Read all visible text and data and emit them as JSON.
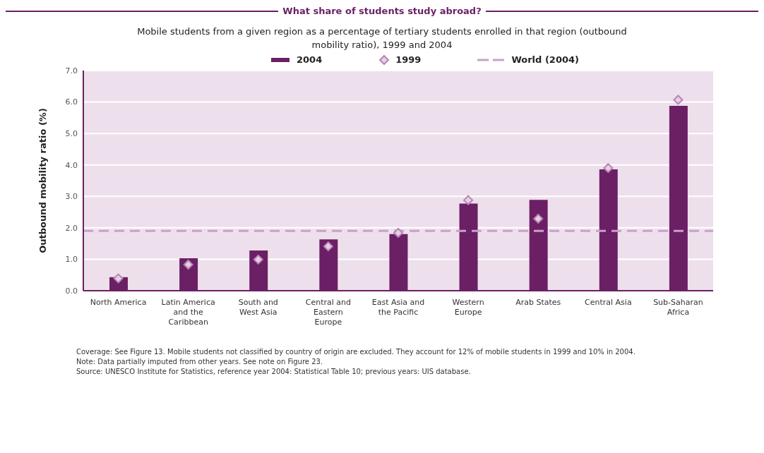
{
  "chart_data": {
    "type": "bar",
    "title": "What share of students study abroad?",
    "subtitle": "Mobile students from a given region as a percentage of tertiary students enrolled in that region (outbound mobility ratio), 1999 and 2004",
    "ylabel": "Outbound mobility ratio (%)",
    "categories": [
      "North America",
      "Latin America and the Caribbean",
      "South and West Asia",
      "Central and Eastern Europe",
      "East Asia and the Pacific",
      "Western Europe",
      "Arab States",
      "Central Asia",
      "Sub-Saharan Africa"
    ],
    "series": [
      {
        "name": "2004",
        "color": "#6b1f64",
        "values": [
          0.43,
          1.03,
          1.28,
          1.63,
          1.8,
          2.77,
          2.89,
          3.86,
          5.88
        ]
      },
      {
        "name": "1999",
        "type": "scatter",
        "color": "#b784b4",
        "values": [
          0.39,
          0.83,
          0.99,
          1.41,
          1.84,
          2.88,
          2.29,
          3.9,
          6.07
        ]
      }
    ],
    "marker": "diamond",
    "ref_lines": [
      {
        "axis": "y",
        "value": 1.9,
        "label": "World (2004)",
        "color": "#c9a0c8",
        "line_style": "dashed"
      }
    ],
    "ylim": [
      0,
      7
    ],
    "yticks": [
      {
        "value": 0,
        "label": "0.0"
      },
      {
        "value": 1,
        "label": "1.0"
      },
      {
        "value": 2,
        "label": "2.0"
      },
      {
        "value": 3,
        "label": "3.0"
      },
      {
        "value": 4,
        "label": "4.0"
      },
      {
        "value": 5,
        "label": "5.0"
      },
      {
        "value": 6,
        "label": "6.0"
      },
      {
        "value": 7,
        "label": "7.0"
      }
    ],
    "grid": "y",
    "legend": "top",
    "annotations": [
      "Coverage: See Figure 13. Mobile students not classified by country of origin are excluded. They account for 12% of mobile students in 1999 and 10% in 2004.",
      "Note: Data partially imputed from other years. See note on Figure 23.",
      "Source: UNESCO Institute for Statistics, reference year 2004: Statistical Table 10; previous years: UIS database."
    ]
  }
}
